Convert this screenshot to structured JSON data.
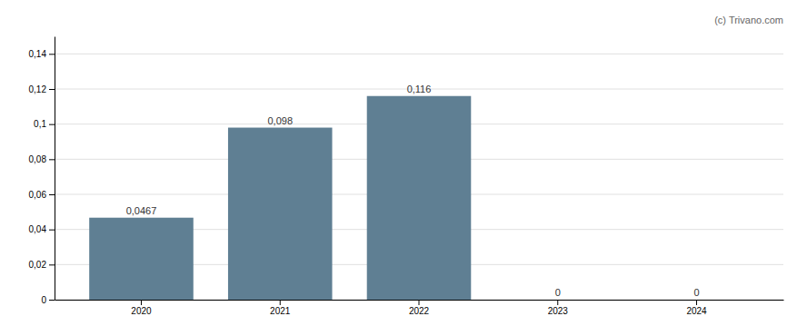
{
  "chart_data": {
    "type": "bar",
    "annotation": "(c) Trivano.com",
    "categories": [
      "2020",
      "2021",
      "2022",
      "2023",
      "2024"
    ],
    "values": [
      0.0467,
      0.098,
      0.116,
      0,
      0
    ],
    "value_labels": [
      "0,0467",
      "0,098",
      "0,116",
      "0",
      "0"
    ],
    "color": "#5f7f93",
    "ylim": [
      0,
      0.15
    ],
    "yticks": [
      0,
      {
        "value": 0.02,
        "label": "0,02"
      },
      {
        "value": 0.04,
        "label": "0,04"
      },
      {
        "value": 0.06,
        "label": "0,06"
      },
      {
        "value": 0.08,
        "label": "0,08"
      },
      {
        "value": 0.1,
        "label": "0,1"
      },
      {
        "value": 0.12,
        "label": "0,12"
      },
      {
        "value": 0.14,
        "label": "0,14"
      }
    ],
    "grid": true,
    "data_labels": true
  }
}
